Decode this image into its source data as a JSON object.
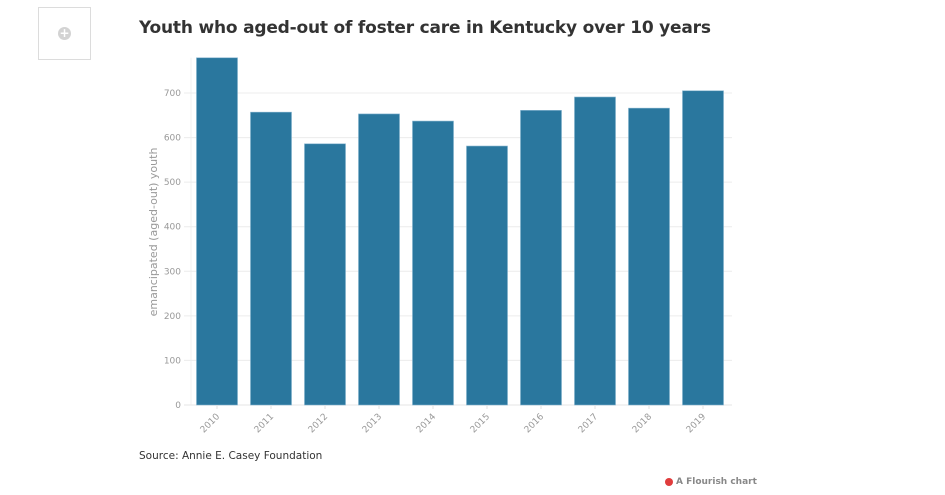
{
  "thumbnail": {
    "icon": "plus-circle-icon"
  },
  "chart_data": {
    "type": "bar",
    "title": "Youth who aged-out of foster care in Kentucky over 10 years",
    "xlabel": "",
    "ylabel": "emancipated (aged-out) youth",
    "categories": [
      "2010",
      "2011",
      "2012",
      "2013",
      "2014",
      "2015",
      "2016",
      "2017",
      "2018",
      "2019"
    ],
    "values": [
      779,
      657,
      586,
      653,
      637,
      581,
      661,
      691,
      666,
      705
    ],
    "ylim": [
      0,
      779
    ],
    "yticks": [
      0,
      100,
      200,
      300,
      400,
      500,
      600,
      700
    ],
    "grid": true,
    "bar_color": "#2a779e",
    "source": "Source: Annie E. Casey Foundation"
  },
  "footer": {
    "credit": "A Flourish chart"
  }
}
